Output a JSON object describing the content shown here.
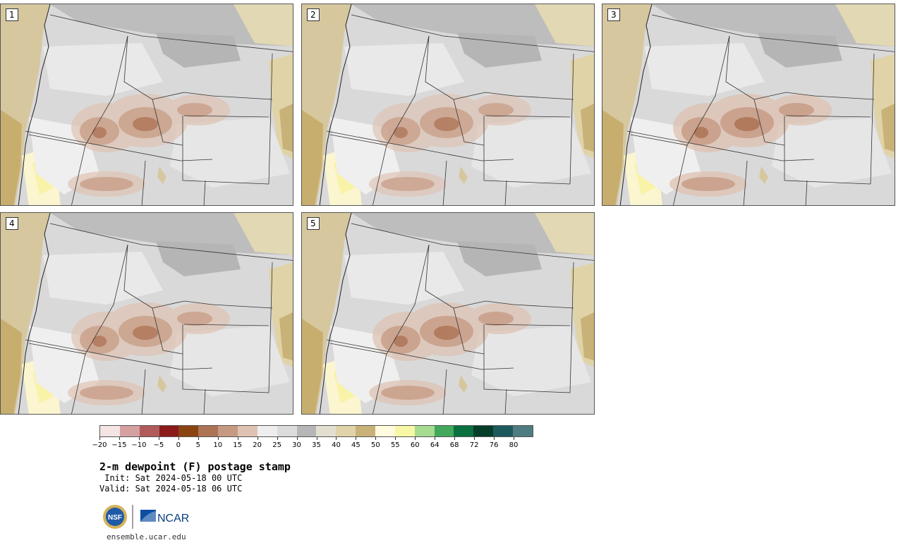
{
  "panels": [
    {
      "label": "1",
      "intensity": 0.9
    },
    {
      "label": "2",
      "intensity": 0.85
    },
    {
      "label": "3",
      "intensity": 1.0
    },
    {
      "label": "4",
      "intensity": 0.9
    },
    {
      "label": "5",
      "intensity": 0.95
    }
  ],
  "colorbar": {
    "colors": [
      "#f4e4e4",
      "#d4a0a0",
      "#b05a5a",
      "#8b1a1a",
      "#8a4412",
      "#ad7355",
      "#c69a82",
      "#dfc2b2",
      "#eeeeee",
      "#dcdcdc",
      "#b6b6b6",
      "#e2dfd0",
      "#e0d3a8",
      "#c9b278",
      "#fffbdc",
      "#f8f7a6",
      "#a6dc8f",
      "#44a85c",
      "#0a7040",
      "#063d28",
      "#1d5a5e",
      "#4e7c80"
    ],
    "tick_labels": [
      "−20",
      "−15",
      "−10",
      "−5",
      "0",
      "5",
      "10",
      "15",
      "20",
      "25",
      "30",
      "35",
      "40",
      "45",
      "50",
      "55",
      "60",
      "64",
      "68",
      "72",
      "76",
      "80"
    ]
  },
  "title": "2-m dewpoint (F) postage stamp",
  "init": " Init: Sat 2024-05-18 00 UTC",
  "valid": "Valid: Sat 2024-05-18 06 UTC",
  "logos": {
    "nsf": "NSF",
    "ncar": "NCAR"
  },
  "site": "ensemble.ucar.edu"
}
